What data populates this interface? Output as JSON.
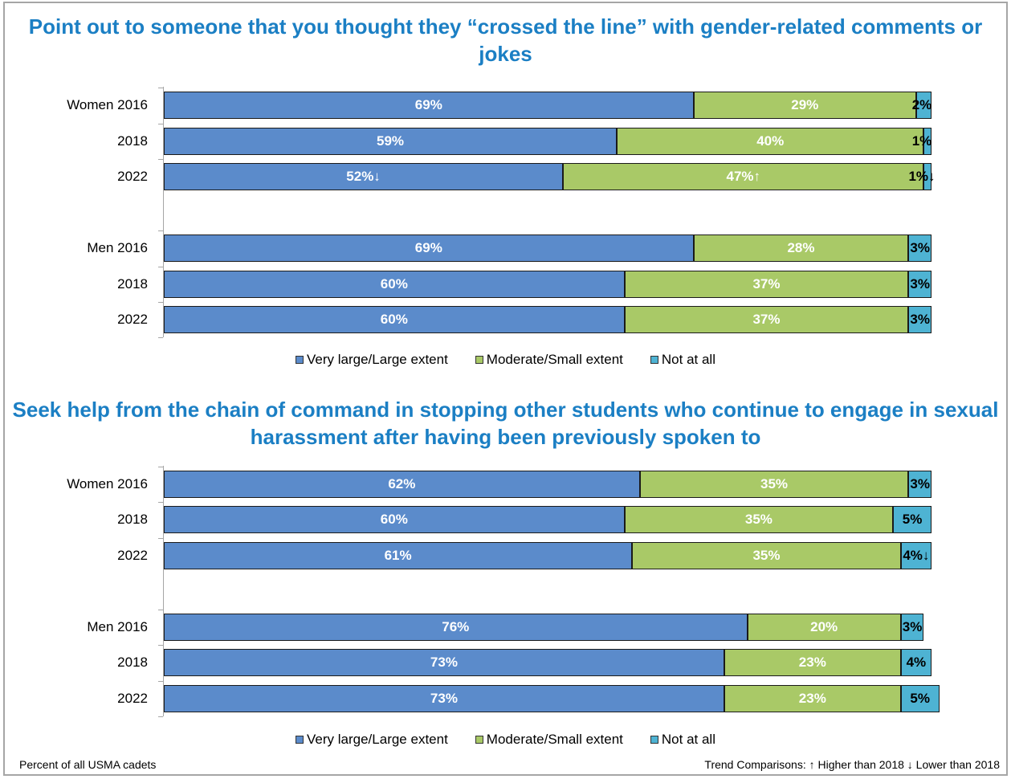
{
  "colors": {
    "very_large": "#5b8bcb",
    "moderate": "#a9c967",
    "not_at_all": "#4eb3d3",
    "title": "#1b7fc4"
  },
  "legend": [
    "Very large/Large extent",
    "Moderate/Small extent",
    "Not at all"
  ],
  "footer": {
    "left": "Percent of all USMA cadets",
    "right": "Trend Comparisons:  ↑ Higher than 2018  ↓ Lower than 2018"
  },
  "chart_data": [
    {
      "type": "bar",
      "orientation": "horizontal",
      "stacked": true,
      "title": "Point out to someone that you thought they “crossed the line” with gender-related comments or jokes",
      "categories": [
        "Women 2016",
        "2018",
        "2022",
        "Men 2016",
        "2018",
        "2022"
      ],
      "series": [
        {
          "name": "Very large/Large extent",
          "values": [
            69,
            59,
            52,
            69,
            60,
            60
          ],
          "labels": [
            "69%",
            "59%",
            "52%↓",
            "69%",
            "60%",
            "60%"
          ]
        },
        {
          "name": "Moderate/Small extent",
          "values": [
            29,
            40,
            47,
            28,
            37,
            37
          ],
          "labels": [
            "29%",
            "40%",
            "47%↑",
            "28%",
            "37%",
            "37%"
          ]
        },
        {
          "name": "Not at all",
          "values": [
            2,
            1,
            1,
            3,
            3,
            3
          ],
          "labels": [
            "2%",
            "1%",
            "1%↓",
            "3%",
            "3%",
            "3%"
          ]
        }
      ],
      "xlim": [
        0,
        100
      ],
      "legend": "bottom"
    },
    {
      "type": "bar",
      "orientation": "horizontal",
      "stacked": true,
      "title": "Seek help from the chain of command in stopping other students who continue to engage in sexual harassment after having been previously spoken to",
      "categories": [
        "Women 2016",
        "2018",
        "2022",
        "Men 2016",
        "2018",
        "2022"
      ],
      "series": [
        {
          "name": "Very large/Large extent",
          "values": [
            62,
            60,
            61,
            76,
            73,
            73
          ],
          "labels": [
            "62%",
            "60%",
            "61%",
            "76%",
            "73%",
            "73%"
          ]
        },
        {
          "name": "Moderate/Small extent",
          "values": [
            35,
            35,
            35,
            20,
            23,
            23
          ],
          "labels": [
            "35%",
            "35%",
            "35%",
            "20%",
            "23%",
            "23%"
          ]
        },
        {
          "name": "Not at all",
          "values": [
            3,
            5,
            4,
            3,
            4,
            5
          ],
          "labels": [
            "3%",
            "5%",
            "4%↓",
            "3%",
            "4%",
            "5%"
          ]
        }
      ],
      "xlim": [
        0,
        100
      ],
      "legend": "bottom"
    }
  ]
}
